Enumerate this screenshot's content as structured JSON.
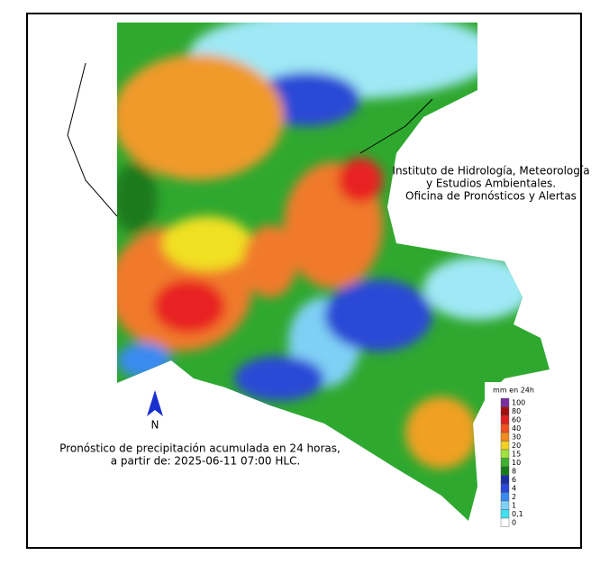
{
  "institute": {
    "lines": [
      "Instituto de Hidrología, Meteorología",
      "y Estudios Ambientales.",
      "Oficina de Pronósticos y Alertas"
    ]
  },
  "caption": {
    "lines": [
      "Pronóstico de precipitación acumulada en 24 horas,",
      "a partir de: 2025-06-11 07:00 HLC."
    ]
  },
  "north": "N",
  "legend": {
    "title": "mm en 24h",
    "labels": [
      "100",
      "80",
      "60",
      "40",
      "30",
      "20",
      "15",
      "10",
      "8",
      "6",
      "4",
      "2",
      "1",
      "0,1",
      "0"
    ]
  }
}
